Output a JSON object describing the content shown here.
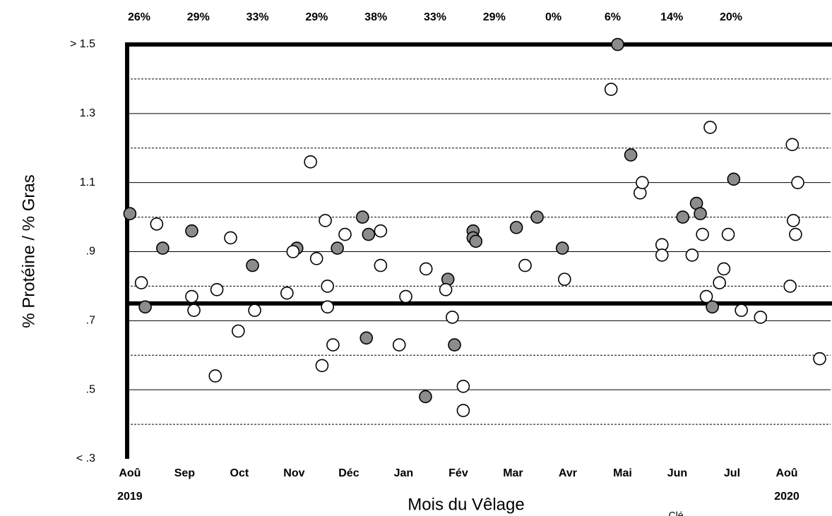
{
  "chart_data": {
    "type": "scatter",
    "ylabel": "% Protéine / % Gras",
    "xlabel": "Mois du Vêlage",
    "top_labels": [
      "26%",
      "29%",
      "33%",
      "29%",
      "38%",
      "33%",
      "29%",
      "0%",
      "6%",
      "14%",
      "20%"
    ],
    "cropped_text": "Clé",
    "xlim": [
      -0.05,
      12.8
    ],
    "xticks": [
      {
        "value": 0,
        "label": "Aoû"
      },
      {
        "value": 1,
        "label": "Sep"
      },
      {
        "value": 2,
        "label": "Oct"
      },
      {
        "value": 3,
        "label": "Nov"
      },
      {
        "value": 4,
        "label": "Déc"
      },
      {
        "value": 5,
        "label": "Jan"
      },
      {
        "value": 6,
        "label": "Fév"
      },
      {
        "value": 7,
        "label": "Mar"
      },
      {
        "value": 8,
        "label": "Avr"
      },
      {
        "value": 9,
        "label": "Mai"
      },
      {
        "value": 10,
        "label": "Jun"
      },
      {
        "value": 11,
        "label": "Jul"
      },
      {
        "value": 12,
        "label": "Aoû"
      }
    ],
    "x_year_labels": [
      {
        "value": 0,
        "label": "2019"
      },
      {
        "value": 12,
        "label": "2020"
      }
    ],
    "ylim": [
      0.3,
      1.5
    ],
    "yticks": [
      {
        "value": 0.3,
        "label": "< .3"
      },
      {
        "value": 0.5,
        "label": ".5"
      },
      {
        "value": 0.7,
        "label": ".7"
      },
      {
        "value": 0.9,
        "label": ".9"
      },
      {
        "value": 1.1,
        "label": "1.1"
      },
      {
        "value": 1.3,
        "label": "1.3"
      },
      {
        "value": 1.5,
        "label": "> 1.5"
      }
    ],
    "minor_yticks": [
      0.4,
      0.6,
      0.8,
      1.0,
      1.2,
      1.4
    ],
    "threshold": 0.75,
    "grid": true,
    "series": [
      {
        "color": "#8c8c8c",
        "x": [
          0.0,
          0.28,
          0.6,
          1.13,
          2.24,
          3.05,
          3.79,
          4.25,
          4.36,
          4.32,
          5.4,
          5.81,
          5.93,
          6.27,
          6.27,
          6.32,
          7.06,
          7.44,
          7.9,
          8.91,
          9.15,
          10.1,
          10.35,
          10.42,
          10.64,
          11.03
        ],
        "values": [
          1.01,
          0.74,
          0.91,
          0.96,
          0.86,
          0.91,
          0.91,
          1.0,
          0.95,
          0.65,
          0.48,
          0.82,
          0.63,
          0.96,
          0.94,
          0.93,
          0.97,
          1.0,
          0.91,
          1.5,
          1.18,
          1.0,
          1.04,
          1.01,
          0.74,
          1.11
        ]
      },
      {
        "color": "#ffffff",
        "x": [
          0.21,
          0.49,
          1.13,
          1.17,
          1.56,
          1.59,
          1.84,
          1.98,
          2.28,
          2.87,
          2.98,
          3.3,
          3.41,
          3.51,
          3.57,
          3.61,
          3.61,
          3.71,
          3.93,
          4.58,
          4.58,
          4.92,
          5.04,
          5.41,
          5.77,
          5.89,
          6.09,
          6.09,
          7.22,
          7.94,
          8.79,
          9.32,
          9.36,
          9.72,
          9.72,
          10.27,
          10.46,
          10.53,
          10.6,
          10.77,
          10.85,
          10.93,
          11.17,
          11.52,
          12.06,
          12.1,
          12.12,
          12.16,
          12.2,
          12.6
        ],
        "values": [
          0.81,
          0.98,
          0.77,
          0.73,
          0.54,
          0.79,
          0.94,
          0.67,
          0.73,
          0.78,
          0.9,
          1.16,
          0.88,
          0.57,
          0.99,
          0.8,
          0.74,
          0.63,
          0.95,
          0.96,
          0.86,
          0.63,
          0.77,
          0.85,
          0.79,
          0.71,
          0.51,
          0.44,
          0.86,
          0.82,
          1.37,
          1.07,
          1.1,
          0.92,
          0.89,
          0.89,
          0.95,
          0.77,
          1.26,
          0.81,
          0.85,
          0.95,
          0.73,
          0.71,
          0.8,
          1.21,
          0.99,
          0.95,
          1.1,
          0.59
        ]
      }
    ]
  }
}
